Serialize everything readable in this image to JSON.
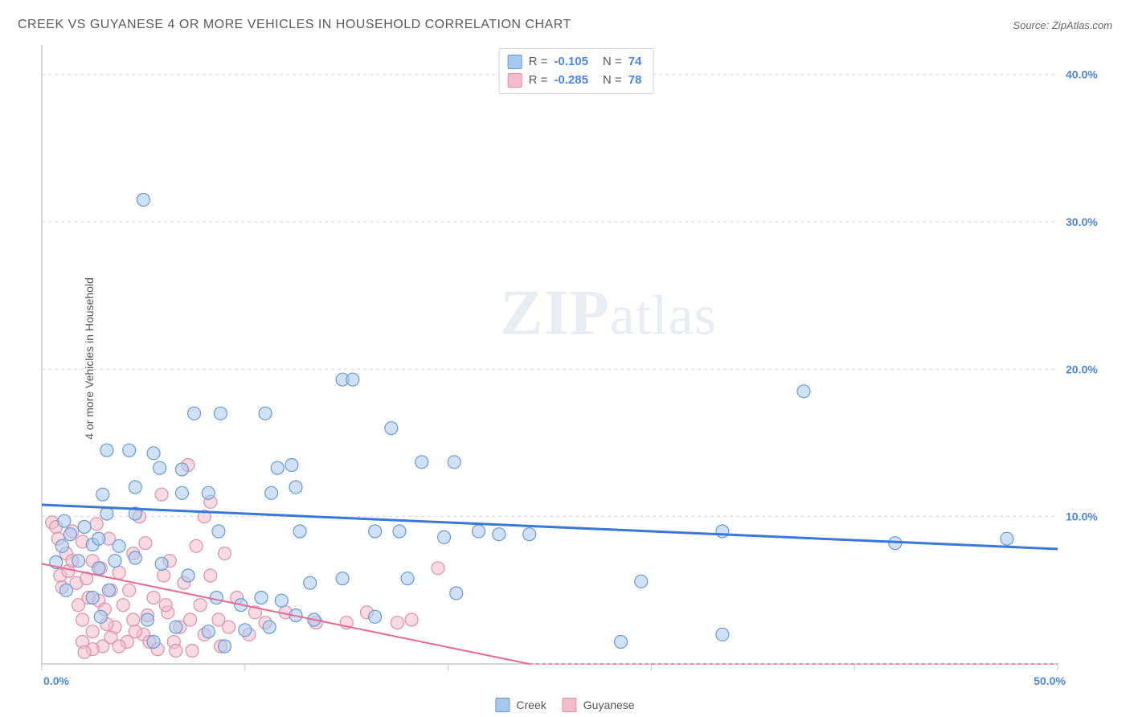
{
  "header": {
    "title": "CREEK VS GUYANESE 4 OR MORE VEHICLES IN HOUSEHOLD CORRELATION CHART",
    "source_label": "Source:",
    "source_name": "ZipAtlas.com"
  },
  "ylabel": "4 or more Vehicles in Household",
  "watermark": {
    "bold": "ZIP",
    "rest": "atlas"
  },
  "chart": {
    "type": "scatter",
    "xlim": [
      0,
      50
    ],
    "ylim": [
      0,
      42
    ],
    "x_ticks": [
      0,
      10,
      20,
      30,
      40,
      50
    ],
    "x_tick_labels": [
      "0.0%",
      "",
      "",
      "",
      "",
      "50.0%"
    ],
    "y_ticks": [
      10,
      20,
      30,
      40
    ],
    "y_tick_labels": [
      "10.0%",
      "20.0%",
      "30.0%",
      "40.0%"
    ],
    "grid_color": "#d8d8d8",
    "axis_color": "#c7c7c7",
    "background_color": "#ffffff",
    "marker_radius": 8,
    "marker_stroke_width": 1.2,
    "series": [
      {
        "name": "Creek",
        "fill": "#a9c8ef",
        "stroke": "#6599d6",
        "fill_opacity": 0.55,
        "R": "-0.105",
        "N": "74",
        "trend": {
          "x1": 0,
          "y1": 10.8,
          "x2": 50,
          "y2": 7.8,
          "color": "#3a78d8",
          "width": 3
        },
        "points": [
          [
            5.0,
            31.5
          ],
          [
            7.5,
            17.0
          ],
          [
            8.8,
            17.0
          ],
          [
            11.0,
            17.0
          ],
          [
            17.2,
            16.0
          ],
          [
            37.5,
            18.5
          ],
          [
            14.8,
            19.3
          ],
          [
            15.3,
            19.3
          ],
          [
            29.5,
            5.6
          ],
          [
            33.5,
            2.0
          ],
          [
            33.5,
            9.0
          ],
          [
            3.2,
            14.5
          ],
          [
            4.3,
            14.5
          ],
          [
            5.5,
            14.3
          ],
          [
            5.8,
            13.3
          ],
          [
            6.9,
            13.2
          ],
          [
            11.6,
            13.3
          ],
          [
            12.3,
            13.5
          ],
          [
            12.5,
            12.0
          ],
          [
            24.0,
            8.8
          ],
          [
            28.5,
            1.5
          ],
          [
            3.0,
            11.5
          ],
          [
            4.6,
            12.0
          ],
          [
            6.9,
            11.6
          ],
          [
            8.2,
            11.6
          ],
          [
            11.3,
            11.6
          ],
          [
            3.2,
            10.2
          ],
          [
            4.6,
            10.2
          ],
          [
            3.8,
            8.0
          ],
          [
            8.7,
            9.0
          ],
          [
            12.7,
            9.0
          ],
          [
            22.5,
            8.8
          ],
          [
            1.1,
            9.7
          ],
          [
            1.4,
            8.8
          ],
          [
            1.8,
            7.0
          ],
          [
            2.1,
            9.3
          ],
          [
            2.5,
            8.1
          ],
          [
            2.8,
            8.5
          ],
          [
            0.7,
            6.9
          ],
          [
            1.2,
            5.0
          ],
          [
            4.6,
            7.2
          ],
          [
            5.9,
            6.8
          ],
          [
            7.2,
            6.0
          ],
          [
            8.6,
            4.5
          ],
          [
            9.8,
            4.0
          ],
          [
            10.8,
            4.5
          ],
          [
            11.8,
            4.3
          ],
          [
            14.8,
            5.8
          ],
          [
            16.4,
            9.0
          ],
          [
            17.6,
            9.0
          ],
          [
            18.0,
            5.8
          ],
          [
            19.8,
            8.6
          ],
          [
            20.4,
            4.8
          ],
          [
            21.5,
            9.0
          ],
          [
            20.3,
            13.7
          ],
          [
            18.7,
            13.7
          ],
          [
            5.2,
            3.0
          ],
          [
            5.5,
            1.5
          ],
          [
            6.6,
            2.5
          ],
          [
            8.2,
            2.2
          ],
          [
            9.0,
            1.2
          ],
          [
            10.0,
            2.3
          ],
          [
            11.2,
            2.5
          ],
          [
            12.5,
            3.3
          ],
          [
            13.4,
            3.0
          ],
          [
            13.2,
            5.5
          ],
          [
            16.4,
            3.2
          ],
          [
            42.0,
            8.2
          ],
          [
            47.5,
            8.5
          ],
          [
            1.0,
            8.0
          ],
          [
            2.8,
            6.5
          ],
          [
            3.3,
            5.0
          ],
          [
            3.6,
            7.0
          ],
          [
            2.5,
            4.5
          ],
          [
            2.9,
            3.2
          ]
        ]
      },
      {
        "name": "Guyanese",
        "fill": "#f3bccb",
        "stroke": "#df8fa8",
        "fill_opacity": 0.55,
        "R": "-0.285",
        "N": "78",
        "trend": {
          "x1": 0,
          "y1": 6.8,
          "x2": 24,
          "y2": 0,
          "color": "#e86a8f",
          "width": 2
        },
        "trend_dash": {
          "x1": 24,
          "y1": 0,
          "x2": 50,
          "y2": -14,
          "color": "#e86a8f"
        },
        "points": [
          [
            0.5,
            9.6
          ],
          [
            0.7,
            9.3
          ],
          [
            0.8,
            8.5
          ],
          [
            0.9,
            6.0
          ],
          [
            1.0,
            5.2
          ],
          [
            1.2,
            7.5
          ],
          [
            1.3,
            6.3
          ],
          [
            1.5,
            9.0
          ],
          [
            1.5,
            7.0
          ],
          [
            1.7,
            5.5
          ],
          [
            1.8,
            4.0
          ],
          [
            2.0,
            8.3
          ],
          [
            2.0,
            3.0
          ],
          [
            2.2,
            5.8
          ],
          [
            2.3,
            4.5
          ],
          [
            2.5,
            7.0
          ],
          [
            2.5,
            2.2
          ],
          [
            2.7,
            9.5
          ],
          [
            2.8,
            4.3
          ],
          [
            2.9,
            6.5
          ],
          [
            3.0,
            1.2
          ],
          [
            3.1,
            3.7
          ],
          [
            3.3,
            8.5
          ],
          [
            3.4,
            5.0
          ],
          [
            3.6,
            2.5
          ],
          [
            3.8,
            6.2
          ],
          [
            4.0,
            4.0
          ],
          [
            4.2,
            1.5
          ],
          [
            4.3,
            5.0
          ],
          [
            4.5,
            7.5
          ],
          [
            4.5,
            3.0
          ],
          [
            4.8,
            10.0
          ],
          [
            5.0,
            2.0
          ],
          [
            5.1,
            8.2
          ],
          [
            5.3,
            1.5
          ],
          [
            5.5,
            4.5
          ],
          [
            5.9,
            11.5
          ],
          [
            6.0,
            6.0
          ],
          [
            6.2,
            3.5
          ],
          [
            6.3,
            7.0
          ],
          [
            6.5,
            1.5
          ],
          [
            6.8,
            2.5
          ],
          [
            7.0,
            5.5
          ],
          [
            7.2,
            13.5
          ],
          [
            7.4,
            0.9
          ],
          [
            7.6,
            8.0
          ],
          [
            7.8,
            4.0
          ],
          [
            8.0,
            10.0
          ],
          [
            8.0,
            2.0
          ],
          [
            8.3,
            6.0
          ],
          [
            8.3,
            11.0
          ],
          [
            8.7,
            3.0
          ],
          [
            8.8,
            1.2
          ],
          [
            9.0,
            7.5
          ],
          [
            9.2,
            2.5
          ],
          [
            9.6,
            4.5
          ],
          [
            10.2,
            2.0
          ],
          [
            10.5,
            3.5
          ],
          [
            2.0,
            1.5
          ],
          [
            2.5,
            1.0
          ],
          [
            3.2,
            2.7
          ],
          [
            3.4,
            1.8
          ],
          [
            3.8,
            1.2
          ],
          [
            4.6,
            2.2
          ],
          [
            5.2,
            3.3
          ],
          [
            5.7,
            1.0
          ],
          [
            6.1,
            4.0
          ],
          [
            6.6,
            0.9
          ],
          [
            7.3,
            3.0
          ],
          [
            2.1,
            0.8
          ],
          [
            11.0,
            2.8
          ],
          [
            12.0,
            3.5
          ],
          [
            13.5,
            2.8
          ],
          [
            15.0,
            2.8
          ],
          [
            16.0,
            3.5
          ],
          [
            17.5,
            2.8
          ],
          [
            19.5,
            6.5
          ],
          [
            18.2,
            3.0
          ]
        ]
      }
    ],
    "stat_box": {
      "rows": [
        {
          "swatch_fill": "#a9c8ef",
          "swatch_stroke": "#6599d6",
          "R_label": "R",
          "R": "-0.105",
          "N_label": "N",
          "N": "74",
          "eq": "="
        },
        {
          "swatch_fill": "#f3bccb",
          "swatch_stroke": "#df8fa8",
          "R_label": "R",
          "R": "-0.285",
          "N_label": "N",
          "N": "78",
          "eq": "="
        }
      ]
    },
    "legend": [
      {
        "swatch_fill": "#a9c8ef",
        "swatch_stroke": "#6599d6",
        "label": "Creek"
      },
      {
        "swatch_fill": "#f3bccb",
        "swatch_stroke": "#df8fa8",
        "label": "Guyanese"
      }
    ]
  }
}
